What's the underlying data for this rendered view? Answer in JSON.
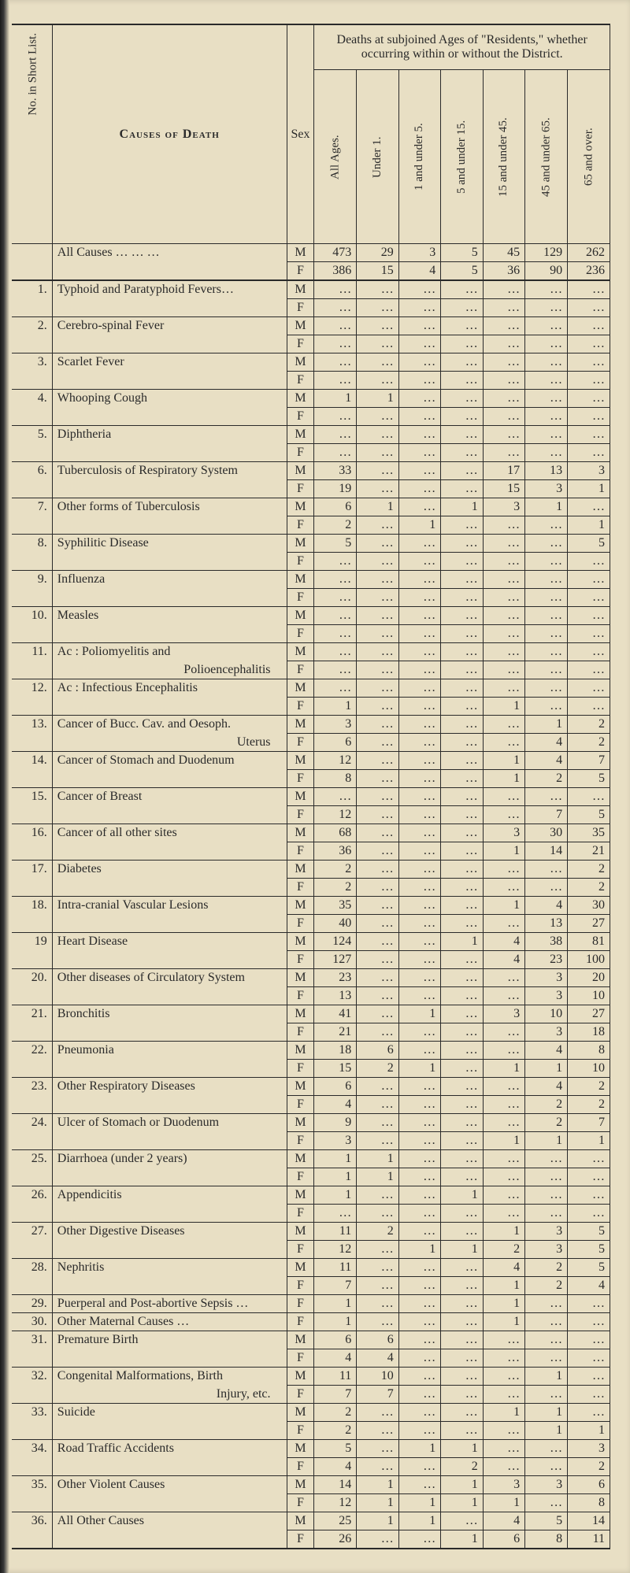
{
  "header": {
    "deaths_title": "Deaths at subjoined Ages of \"Residents,\" whether occurring within or without the District.",
    "causes_label": "Causes of Death",
    "sex_label": "Sex",
    "no_label": "No. in Short List.",
    "age_cols": [
      "All Ages.",
      "Under 1.",
      "1 and under 5.",
      "5 and under 15.",
      "15 and under 45.",
      "45 and under 65.",
      "65 and over."
    ]
  },
  "all_causes": {
    "label": "All Causes",
    "m": [
      "473",
      "29",
      "3",
      "5",
      "45",
      "129",
      "262"
    ],
    "f": [
      "386",
      "15",
      "4",
      "5",
      "36",
      "90",
      "236"
    ]
  },
  "rows": [
    {
      "no": "1.",
      "cause": "Typhoid and Paratyphoid Fevers…",
      "m": [
        "…",
        "…",
        "…",
        "…",
        "…",
        "…",
        "…"
      ],
      "f": [
        "…",
        "…",
        "…",
        "…",
        "…",
        "…",
        "…"
      ]
    },
    {
      "no": "2.",
      "cause": "Cerebro-spinal Fever",
      "m": [
        "…",
        "…",
        "…",
        "…",
        "…",
        "…",
        "…"
      ],
      "f": [
        "…",
        "…",
        "…",
        "…",
        "…",
        "…",
        "…"
      ]
    },
    {
      "no": "3.",
      "cause": "Scarlet Fever",
      "m": [
        "…",
        "…",
        "…",
        "…",
        "…",
        "…",
        "…"
      ],
      "f": [
        "…",
        "…",
        "…",
        "…",
        "…",
        "…",
        "…"
      ]
    },
    {
      "no": "4.",
      "cause": "Whooping Cough",
      "m": [
        "1",
        "1",
        "…",
        "…",
        "…",
        "…",
        "…"
      ],
      "f": [
        "…",
        "…",
        "…",
        "…",
        "…",
        "…",
        "…"
      ]
    },
    {
      "no": "5.",
      "cause": "Diphtheria",
      "m": [
        "…",
        "…",
        "…",
        "…",
        "…",
        "…",
        "…"
      ],
      "f": [
        "…",
        "…",
        "…",
        "…",
        "…",
        "…",
        "…"
      ]
    },
    {
      "no": "6.",
      "cause": "Tuberculosis of Respiratory System",
      "m": [
        "33",
        "…",
        "…",
        "…",
        "17",
        "13",
        "3"
      ],
      "f": [
        "19",
        "…",
        "…",
        "…",
        "15",
        "3",
        "1"
      ]
    },
    {
      "no": "7.",
      "cause": "Other forms of Tuberculosis",
      "m": [
        "6",
        "1",
        "…",
        "1",
        "3",
        "1",
        "…"
      ],
      "f": [
        "2",
        "…",
        "1",
        "…",
        "…",
        "…",
        "1"
      ]
    },
    {
      "no": "8.",
      "cause": "Syphilitic Disease",
      "m": [
        "5",
        "…",
        "…",
        "…",
        "…",
        "…",
        "5"
      ],
      "f": [
        "…",
        "…",
        "…",
        "…",
        "…",
        "…",
        "…"
      ]
    },
    {
      "no": "9.",
      "cause": "Influenza",
      "m": [
        "…",
        "…",
        "…",
        "…",
        "…",
        "…",
        "…"
      ],
      "f": [
        "…",
        "…",
        "…",
        "…",
        "…",
        "…",
        "…"
      ]
    },
    {
      "no": "10.",
      "cause": "Measles",
      "m": [
        "…",
        "…",
        "…",
        "…",
        "…",
        "…",
        "…"
      ],
      "f": [
        "…",
        "…",
        "…",
        "…",
        "…",
        "…",
        "…"
      ]
    },
    {
      "no": "11.",
      "cause": "Ac : Poliomyelitis and",
      "m": [
        "…",
        "…",
        "…",
        "…",
        "…",
        "…",
        "…"
      ],
      "f": [
        "…",
        "…",
        "…",
        "…",
        "…",
        "…",
        "…"
      ],
      "sub": "Polioencephalitis"
    },
    {
      "no": "12.",
      "cause": "Ac : Infectious Encephalitis",
      "m": [
        "…",
        "…",
        "…",
        "…",
        "…",
        "…",
        "…"
      ],
      "f": [
        "1",
        "…",
        "…",
        "…",
        "1",
        "…",
        "…"
      ]
    },
    {
      "no": "13.",
      "cause": "Cancer of Bucc. Cav. and Oesoph.",
      "m": [
        "3",
        "…",
        "…",
        "…",
        "…",
        "1",
        "2"
      ],
      "f": [
        "6",
        "…",
        "…",
        "…",
        "…",
        "4",
        "2"
      ],
      "sub": "Uterus"
    },
    {
      "no": "14.",
      "cause": "Cancer of Stomach and Duodenum",
      "m": [
        "12",
        "…",
        "…",
        "…",
        "1",
        "4",
        "7"
      ],
      "f": [
        "8",
        "…",
        "…",
        "…",
        "1",
        "2",
        "5"
      ]
    },
    {
      "no": "15.",
      "cause": "Cancer of Breast",
      "m": [
        "…",
        "…",
        "…",
        "…",
        "…",
        "…",
        "…"
      ],
      "f": [
        "12",
        "…",
        "…",
        "…",
        "…",
        "7",
        "5"
      ]
    },
    {
      "no": "16.",
      "cause": "Cancer of all other sites",
      "m": [
        "68",
        "…",
        "…",
        "…",
        "3",
        "30",
        "35"
      ],
      "f": [
        "36",
        "…",
        "…",
        "…",
        "1",
        "14",
        "21"
      ]
    },
    {
      "no": "17.",
      "cause": "Diabetes",
      "m": [
        "2",
        "…",
        "…",
        "…",
        "…",
        "…",
        "2"
      ],
      "f": [
        "2",
        "…",
        "…",
        "…",
        "…",
        "…",
        "2"
      ]
    },
    {
      "no": "18.",
      "cause": "Intra-cranial Vascular Lesions",
      "m": [
        "35",
        "…",
        "…",
        "…",
        "1",
        "4",
        "30"
      ],
      "f": [
        "40",
        "…",
        "…",
        "…",
        "…",
        "13",
        "27"
      ]
    },
    {
      "no": "19",
      "cause": "Heart Disease",
      "m": [
        "124",
        "…",
        "…",
        "1",
        "4",
        "38",
        "81"
      ],
      "f": [
        "127",
        "…",
        "…",
        "…",
        "4",
        "23",
        "100"
      ]
    },
    {
      "no": "20.",
      "cause": "Other diseases of Circulatory System",
      "m": [
        "23",
        "…",
        "…",
        "…",
        "…",
        "3",
        "20"
      ],
      "f": [
        "13",
        "…",
        "…",
        "…",
        "…",
        "3",
        "10"
      ]
    },
    {
      "no": "21.",
      "cause": "Bronchitis",
      "m": [
        "41",
        "…",
        "1",
        "…",
        "3",
        "10",
        "27"
      ],
      "f": [
        "21",
        "…",
        "…",
        "…",
        "…",
        "3",
        "18"
      ]
    },
    {
      "no": "22.",
      "cause": "Pneumonia",
      "m": [
        "18",
        "6",
        "…",
        "…",
        "…",
        "4",
        "8"
      ],
      "f": [
        "15",
        "2",
        "1",
        "…",
        "1",
        "1",
        "10"
      ]
    },
    {
      "no": "23.",
      "cause": "Other Respiratory Diseases",
      "m": [
        "6",
        "…",
        "…",
        "…",
        "…",
        "4",
        "2"
      ],
      "f": [
        "4",
        "…",
        "…",
        "…",
        "…",
        "2",
        "2"
      ]
    },
    {
      "no": "24.",
      "cause": "Ulcer of Stomach or Duodenum",
      "m": [
        "9",
        "…",
        "…",
        "…",
        "…",
        "2",
        "7"
      ],
      "f": [
        "3",
        "…",
        "…",
        "…",
        "1",
        "1",
        "1"
      ]
    },
    {
      "no": "25.",
      "cause": "Diarrhoea (under 2 years)",
      "m": [
        "1",
        "1",
        "…",
        "…",
        "…",
        "…",
        "…"
      ],
      "f": [
        "1",
        "1",
        "…",
        "…",
        "…",
        "…",
        "…"
      ]
    },
    {
      "no": "26.",
      "cause": "Appendicitis",
      "m": [
        "1",
        "…",
        "…",
        "1",
        "…",
        "…",
        "…"
      ],
      "f": [
        "…",
        "…",
        "…",
        "…",
        "…",
        "…",
        "…"
      ]
    },
    {
      "no": "27.",
      "cause": "Other Digestive Diseases",
      "m": [
        "11",
        "2",
        "…",
        "…",
        "1",
        "3",
        "5"
      ],
      "f": [
        "12",
        "…",
        "1",
        "1",
        "2",
        "3",
        "5"
      ]
    },
    {
      "no": "28.",
      "cause": "Nephritis",
      "m": [
        "11",
        "…",
        "…",
        "…",
        "4",
        "2",
        "5"
      ],
      "f": [
        "7",
        "…",
        "…",
        "…",
        "1",
        "2",
        "4"
      ]
    },
    {
      "no": "29.",
      "cause": "Puerperal and Post-abortive Sepsis",
      "f_only": true,
      "f": [
        "1",
        "…",
        "…",
        "…",
        "1",
        "…",
        "…"
      ]
    },
    {
      "no": "30.",
      "cause": "Other Maternal Causes",
      "f_only": true,
      "f": [
        "1",
        "…",
        "…",
        "…",
        "1",
        "…",
        "…"
      ]
    },
    {
      "no": "31.",
      "cause": "Premature Birth",
      "m": [
        "6",
        "6",
        "…",
        "…",
        "…",
        "…",
        "…"
      ],
      "f": [
        "4",
        "4",
        "…",
        "…",
        "…",
        "…",
        "…"
      ]
    },
    {
      "no": "32.",
      "cause": "Congenital Malformations, Birth",
      "m": [
        "11",
        "10",
        "…",
        "…",
        "…",
        "1",
        "…"
      ],
      "f": [
        "7",
        "7",
        "…",
        "…",
        "…",
        "…",
        "…"
      ],
      "sub": "Injury, etc."
    },
    {
      "no": "33.",
      "cause": "Suicide",
      "m": [
        "2",
        "…",
        "…",
        "…",
        "1",
        "1",
        "…"
      ],
      "f": [
        "2",
        "…",
        "…",
        "…",
        "…",
        "1",
        "1"
      ]
    },
    {
      "no": "34.",
      "cause": "Road Traffic Accidents",
      "m": [
        "5",
        "…",
        "1",
        "1",
        "…",
        "…",
        "3"
      ],
      "f": [
        "4",
        "…",
        "…",
        "2",
        "…",
        "…",
        "2"
      ]
    },
    {
      "no": "35.",
      "cause": "Other Violent Causes",
      "m": [
        "14",
        "1",
        "…",
        "1",
        "3",
        "3",
        "6"
      ],
      "f": [
        "12",
        "1",
        "1",
        "1",
        "1",
        "…",
        "8"
      ]
    },
    {
      "no": "36.",
      "cause": "All Other Causes",
      "m": [
        "25",
        "1",
        "1",
        "…",
        "4",
        "5",
        "14"
      ],
      "f": [
        "26",
        "…",
        "…",
        "1",
        "6",
        "8",
        "11"
      ]
    }
  ],
  "style": {
    "bg_page": "#e8dfc4",
    "bg_outer": "#d4c9a8",
    "text_color": "#2a2a2a",
    "border_color": "#2a2a2a",
    "font": "Times New Roman",
    "base_fontsize": 16
  }
}
